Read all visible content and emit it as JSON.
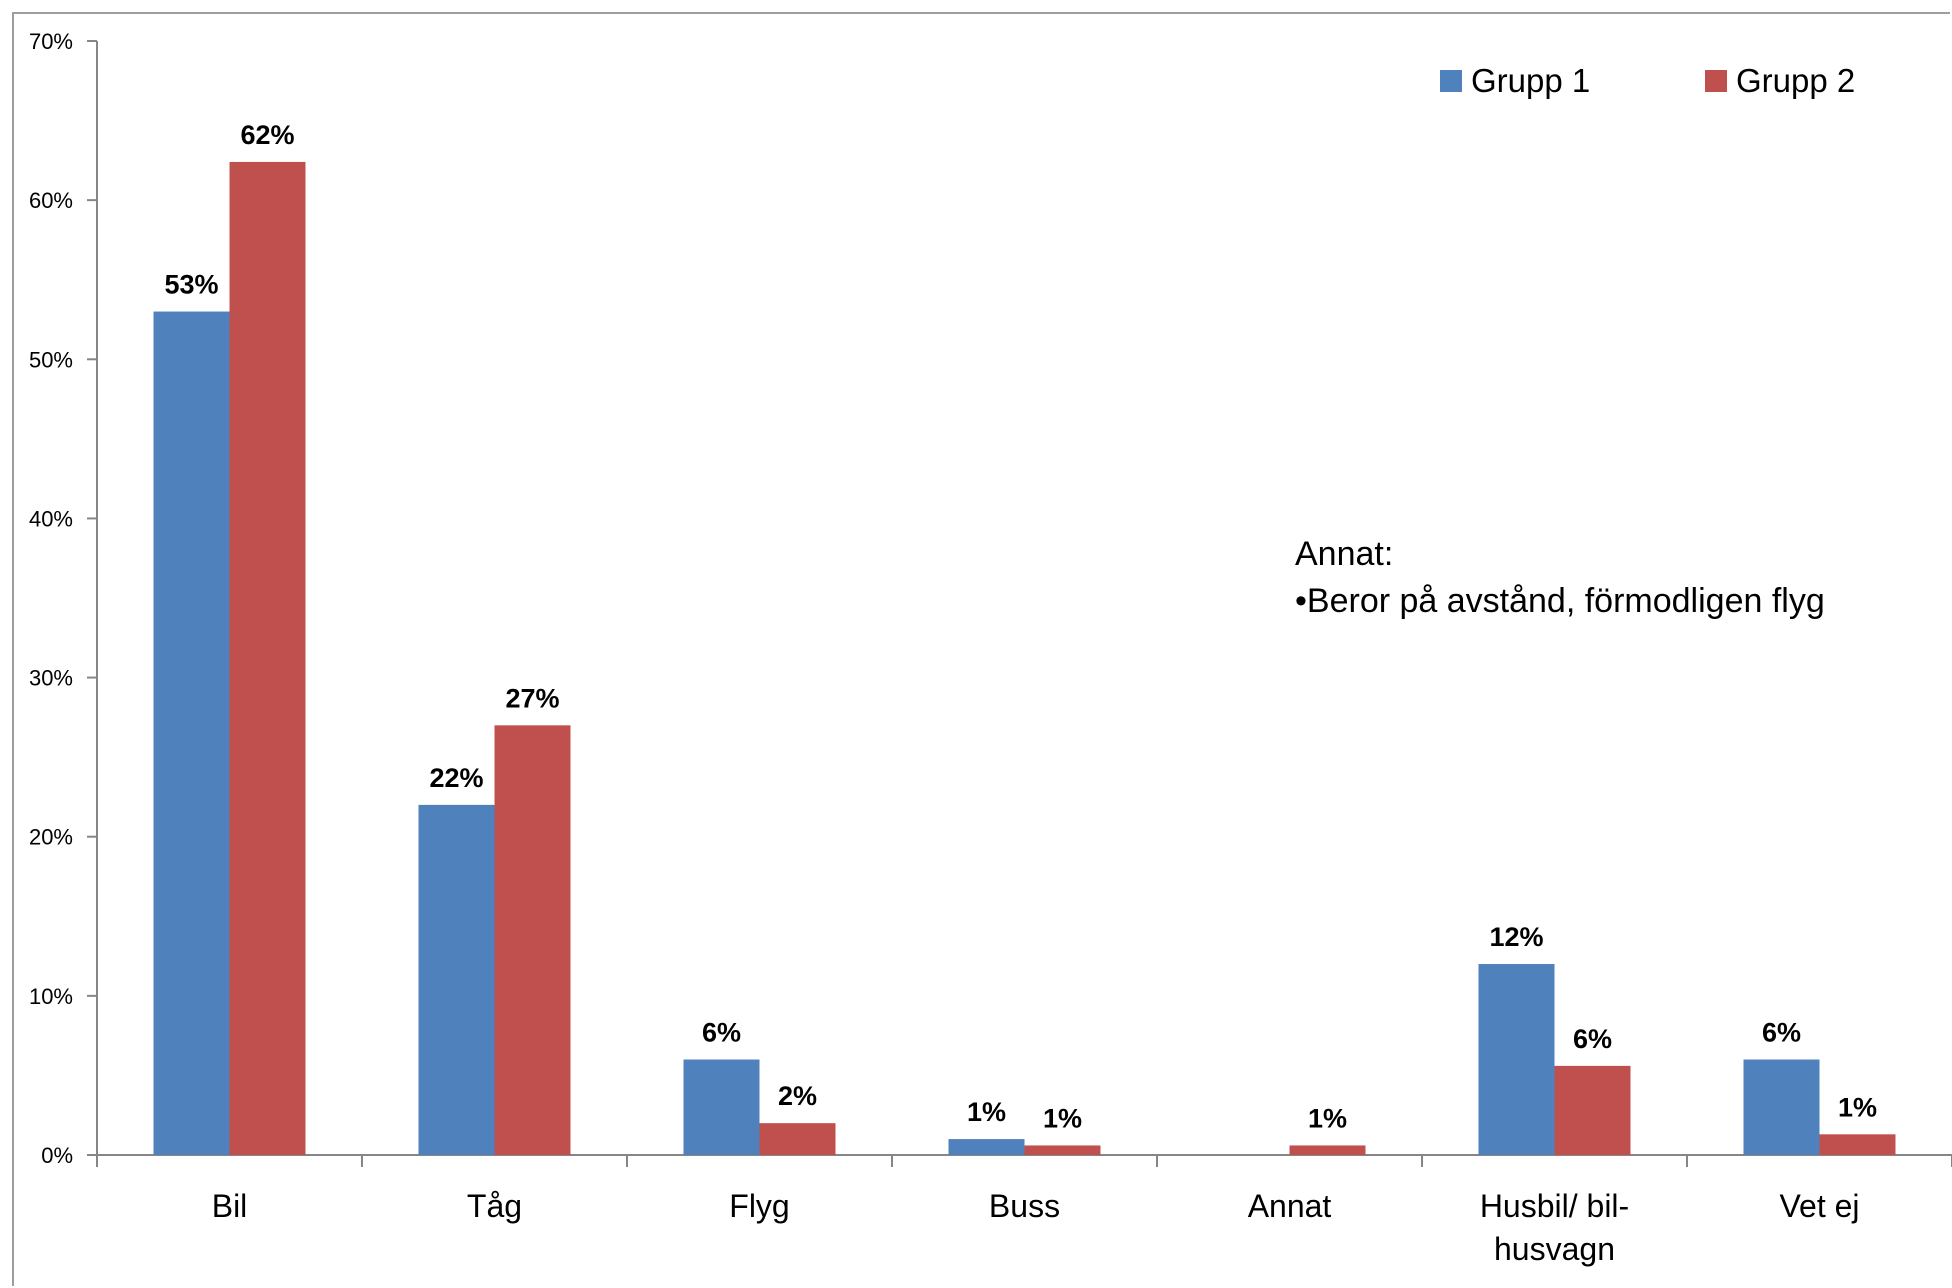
{
  "chart_data": {
    "type": "bar",
    "categories": [
      [
        "Bil"
      ],
      [
        "Tåg"
      ],
      [
        "Flyg"
      ],
      [
        "Buss"
      ],
      [
        "Annat"
      ],
      [
        "Husbil/ bil-",
        "husvagn"
      ],
      [
        "Vet ej"
      ]
    ],
    "series": [
      {
        "name": "Grupp 1",
        "color": "#4f81bd",
        "values": [
          53,
          22,
          6,
          1,
          null,
          12,
          6
        ],
        "labels": [
          "53%",
          "22%",
          "6%",
          "1%",
          "",
          "12%",
          "6%"
        ]
      },
      {
        "name": "Grupp 2",
        "color": "#c0504d",
        "values": [
          62.4,
          27,
          2,
          0.6,
          0.6,
          5.6,
          1.3
        ],
        "labels": [
          "62%",
          "27%",
          "2%",
          "1%",
          "1%",
          "6%",
          "1%"
        ]
      }
    ],
    "ylim": [
      0,
      70
    ],
    "yticks": [
      0,
      10,
      20,
      30,
      40,
      50,
      60,
      70
    ],
    "ytick_labels": [
      "0%",
      "10%",
      "20%",
      "30%",
      "40%",
      "50%",
      "60%",
      "70%"
    ],
    "grid": false,
    "legend_position": "top-right",
    "annotation": [
      "Annat:",
      "•Beror på avstånd, förmodligen flyg"
    ]
  }
}
